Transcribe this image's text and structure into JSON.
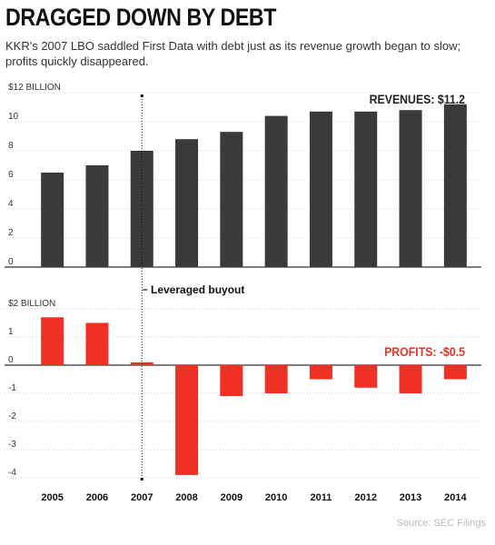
{
  "header": {
    "title": "DRAGGED DOWN BY DEBT",
    "subtitle": "KKR's 2007 LBO saddled First Data with debt just as its revenue growth began to slow; profits quickly disappeared."
  },
  "source": "Source: SEC Filings",
  "annotation": {
    "label": "Leveraged buyout",
    "year": "2007"
  },
  "colors": {
    "revenue": "#3a3a3a",
    "profit": "#ee3124",
    "grid": "#cccccc",
    "axis": "#333333"
  },
  "chart_data": [
    {
      "type": "bar",
      "name": "revenues",
      "title": "",
      "categories": [
        "2005",
        "2006",
        "2007",
        "2008",
        "2009",
        "2010",
        "2011",
        "2012",
        "2013",
        "2014"
      ],
      "values": [
        6.5,
        7.0,
        8.0,
        8.8,
        9.3,
        10.4,
        10.7,
        10.7,
        10.8,
        11.2
      ],
      "ylim": [
        0,
        12
      ],
      "yticks": [
        "$12 BILLION",
        "10",
        "8",
        "6",
        "4",
        "2",
        "0"
      ],
      "label": "REVENUES: $11.2",
      "grid": true
    },
    {
      "type": "bar",
      "name": "profits",
      "title": "",
      "categories": [
        "2005",
        "2006",
        "2007",
        "2008",
        "2009",
        "2010",
        "2011",
        "2012",
        "2013",
        "2014"
      ],
      "values": [
        1.7,
        1.5,
        0.1,
        -3.9,
        -1.1,
        -1.0,
        -0.5,
        -0.8,
        -1.0,
        -0.5
      ],
      "ylim": [
        -4,
        2
      ],
      "yticks": [
        "$2 BILLION",
        "1",
        "0",
        "-1",
        "-2",
        "-3",
        "-4"
      ],
      "label": "PROFITS: -$0.5",
      "grid": true
    }
  ]
}
